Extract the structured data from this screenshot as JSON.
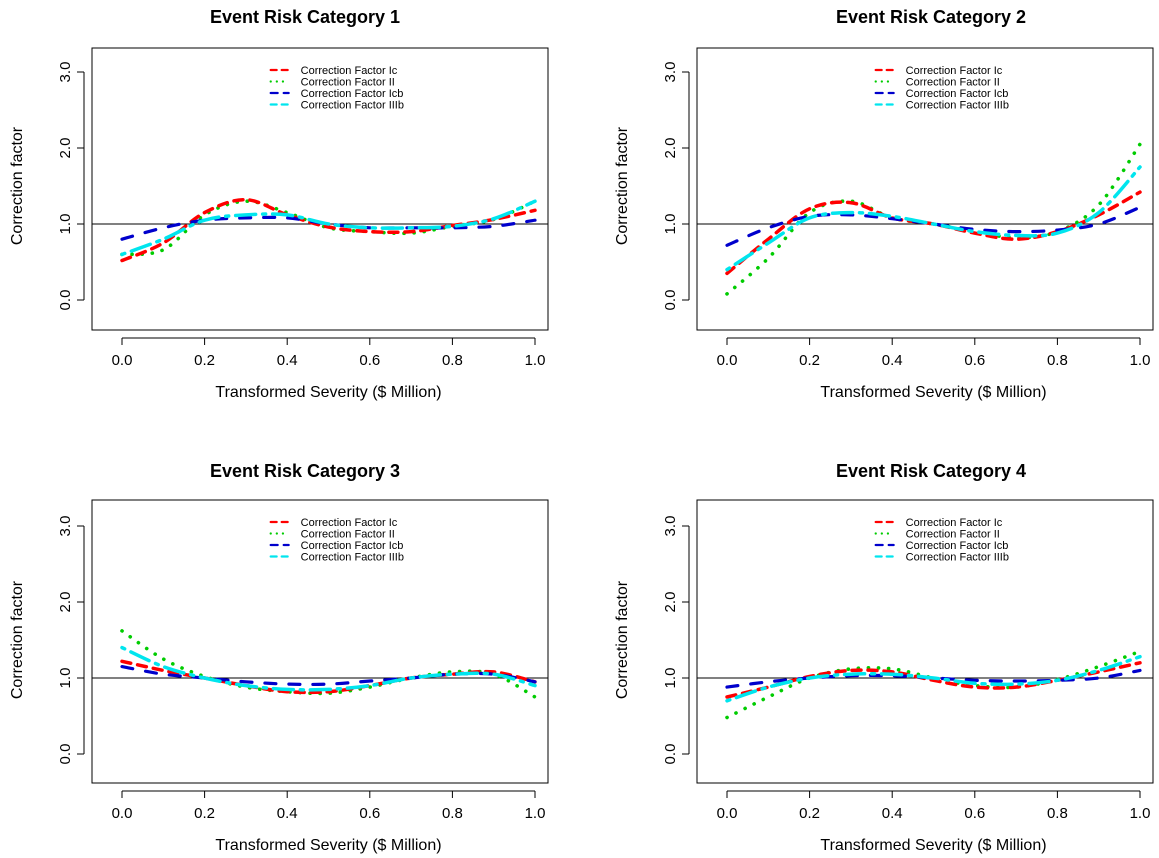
{
  "chart_data": [
    {
      "type": "line",
      "title": "Event Risk Category 1",
      "xlabel": "Transformed Severity ($ Million)",
      "ylabel": "Correction factor",
      "xlim": [
        0.0,
        1.0
      ],
      "ylim": [
        0.0,
        3.0
      ],
      "xticks": [
        "0.0",
        "0.2",
        "0.4",
        "0.6",
        "0.8",
        "1.0"
      ],
      "yticks": [
        "0.0",
        "1.0",
        "2.0",
        "3.0"
      ],
      "reference_line": 1.0,
      "legend_position": "top-right",
      "x": [
        0.0,
        0.1,
        0.2,
        0.3,
        0.4,
        0.5,
        0.6,
        0.7,
        0.8,
        0.9,
        1.0
      ],
      "series": [
        {
          "name": "Correction Factor Ic",
          "color": "#ff0000",
          "style": "dashed",
          "values": [
            0.52,
            0.75,
            1.15,
            1.32,
            1.12,
            0.96,
            0.9,
            0.9,
            0.98,
            1.06,
            1.18
          ]
        },
        {
          "name": "Correction Factor II",
          "color": "#00cc00",
          "style": "dotted",
          "values": [
            0.6,
            0.66,
            1.12,
            1.3,
            1.15,
            0.95,
            0.9,
            0.88,
            0.97,
            1.06,
            1.3
          ]
        },
        {
          "name": "Correction Factor Icb",
          "color": "#0000cc",
          "style": "longdash",
          "values": [
            0.8,
            0.95,
            1.05,
            1.08,
            1.08,
            1.0,
            0.95,
            0.95,
            0.95,
            0.97,
            1.05
          ]
        },
        {
          "name": "Correction Factor IIIb",
          "color": "#00e5ee",
          "style": "twodash",
          "values": [
            0.6,
            0.8,
            1.05,
            1.12,
            1.12,
            1.0,
            0.95,
            0.95,
            0.97,
            1.07,
            1.3
          ]
        }
      ]
    },
    {
      "type": "line",
      "title": "Event Risk Category 2",
      "xlabel": "Transformed Severity ($ Million)",
      "ylabel": "Correction factor",
      "xlim": [
        0.0,
        1.0
      ],
      "ylim": [
        0.0,
        3.0
      ],
      "xticks": [
        "0.0",
        "0.2",
        "0.4",
        "0.6",
        "0.8",
        "1.0"
      ],
      "yticks": [
        "0.0",
        "1.0",
        "2.0",
        "3.0"
      ],
      "reference_line": 1.0,
      "legend_position": "top-right",
      "x": [
        0.0,
        0.1,
        0.2,
        0.3,
        0.4,
        0.5,
        0.6,
        0.7,
        0.8,
        0.9,
        1.0
      ],
      "series": [
        {
          "name": "Correction Factor Ic",
          "color": "#ff0000",
          "style": "dashed",
          "values": [
            0.35,
            0.8,
            1.2,
            1.28,
            1.08,
            1.0,
            0.88,
            0.8,
            0.9,
            1.12,
            1.42
          ]
        },
        {
          "name": "Correction Factor II",
          "color": "#00cc00",
          "style": "dotted",
          "values": [
            0.08,
            0.55,
            1.15,
            1.3,
            1.08,
            1.0,
            0.9,
            0.82,
            0.9,
            1.25,
            2.05
          ]
        },
        {
          "name": "Correction Factor Icb",
          "color": "#0000cc",
          "style": "longdash",
          "values": [
            0.72,
            0.95,
            1.1,
            1.12,
            1.07,
            1.0,
            0.93,
            0.9,
            0.92,
            1.0,
            1.22
          ]
        },
        {
          "name": "Correction Factor IIIb",
          "color": "#00e5ee",
          "style": "twodash",
          "values": [
            0.4,
            0.75,
            1.08,
            1.15,
            1.1,
            1.0,
            0.9,
            0.85,
            0.88,
            1.15,
            1.75
          ]
        }
      ]
    },
    {
      "type": "line",
      "title": "Event Risk Category 3",
      "xlabel": "Transformed Severity ($ Million)",
      "ylabel": "Correction factor",
      "xlim": [
        0.0,
        1.0
      ],
      "ylim": [
        0.0,
        3.0
      ],
      "xticks": [
        "0.0",
        "0.2",
        "0.4",
        "0.6",
        "0.8",
        "1.0"
      ],
      "yticks": [
        "0.0",
        "1.0",
        "2.0",
        "3.0"
      ],
      "reference_line": 1.0,
      "legend_position": "top-right",
      "x": [
        0.0,
        0.1,
        0.2,
        0.3,
        0.4,
        0.5,
        0.6,
        0.7,
        0.8,
        0.9,
        1.0
      ],
      "series": [
        {
          "name": "Correction Factor Ic",
          "color": "#ff0000",
          "style": "dashed",
          "values": [
            1.22,
            1.1,
            1.0,
            0.9,
            0.82,
            0.82,
            0.9,
            1.0,
            1.05,
            1.08,
            0.95
          ]
        },
        {
          "name": "Correction Factor II",
          "color": "#00cc00",
          "style": "dotted",
          "values": [
            1.62,
            1.25,
            1.02,
            0.88,
            0.82,
            0.8,
            0.88,
            1.0,
            1.08,
            1.05,
            0.75
          ]
        },
        {
          "name": "Correction Factor Icb",
          "color": "#0000cc",
          "style": "longdash",
          "values": [
            1.15,
            1.05,
            1.0,
            0.95,
            0.92,
            0.92,
            0.96,
            1.0,
            1.05,
            1.05,
            0.95
          ]
        },
        {
          "name": "Correction Factor IIIb",
          "color": "#00e5ee",
          "style": "twodash",
          "values": [
            1.4,
            1.15,
            1.0,
            0.9,
            0.85,
            0.85,
            0.9,
            1.0,
            1.05,
            1.05,
            0.9
          ]
        }
      ]
    },
    {
      "type": "line",
      "title": "Event Risk Category 4",
      "xlabel": "Transformed Severity ($ Million)",
      "ylabel": "Correction factor",
      "xlim": [
        0.0,
        1.0
      ],
      "ylim": [
        0.0,
        3.0
      ],
      "xticks": [
        "0.0",
        "0.2",
        "0.4",
        "0.6",
        "0.8",
        "1.0"
      ],
      "yticks": [
        "0.0",
        "1.0",
        "2.0",
        "3.0"
      ],
      "reference_line": 1.0,
      "legend_position": "top-right",
      "x": [
        0.0,
        0.1,
        0.2,
        0.3,
        0.4,
        0.5,
        0.6,
        0.7,
        0.8,
        0.9,
        1.0
      ],
      "series": [
        {
          "name": "Correction Factor Ic",
          "color": "#ff0000",
          "style": "dashed",
          "values": [
            0.75,
            0.88,
            1.02,
            1.1,
            1.08,
            0.97,
            0.88,
            0.88,
            0.97,
            1.08,
            1.2
          ]
        },
        {
          "name": "Correction Factor II",
          "color": "#00cc00",
          "style": "dotted",
          "values": [
            0.48,
            0.75,
            1.0,
            1.12,
            1.12,
            1.0,
            0.9,
            0.88,
            0.98,
            1.15,
            1.35
          ]
        },
        {
          "name": "Correction Factor Icb",
          "color": "#0000cc",
          "style": "longdash",
          "values": [
            0.88,
            0.95,
            1.0,
            1.03,
            1.03,
            1.0,
            0.97,
            0.96,
            0.97,
            1.0,
            1.1
          ]
        },
        {
          "name": "Correction Factor IIIb",
          "color": "#00e5ee",
          "style": "twodash",
          "values": [
            0.7,
            0.88,
            1.0,
            1.05,
            1.05,
            1.0,
            0.93,
            0.92,
            0.97,
            1.1,
            1.28
          ]
        }
      ]
    }
  ]
}
